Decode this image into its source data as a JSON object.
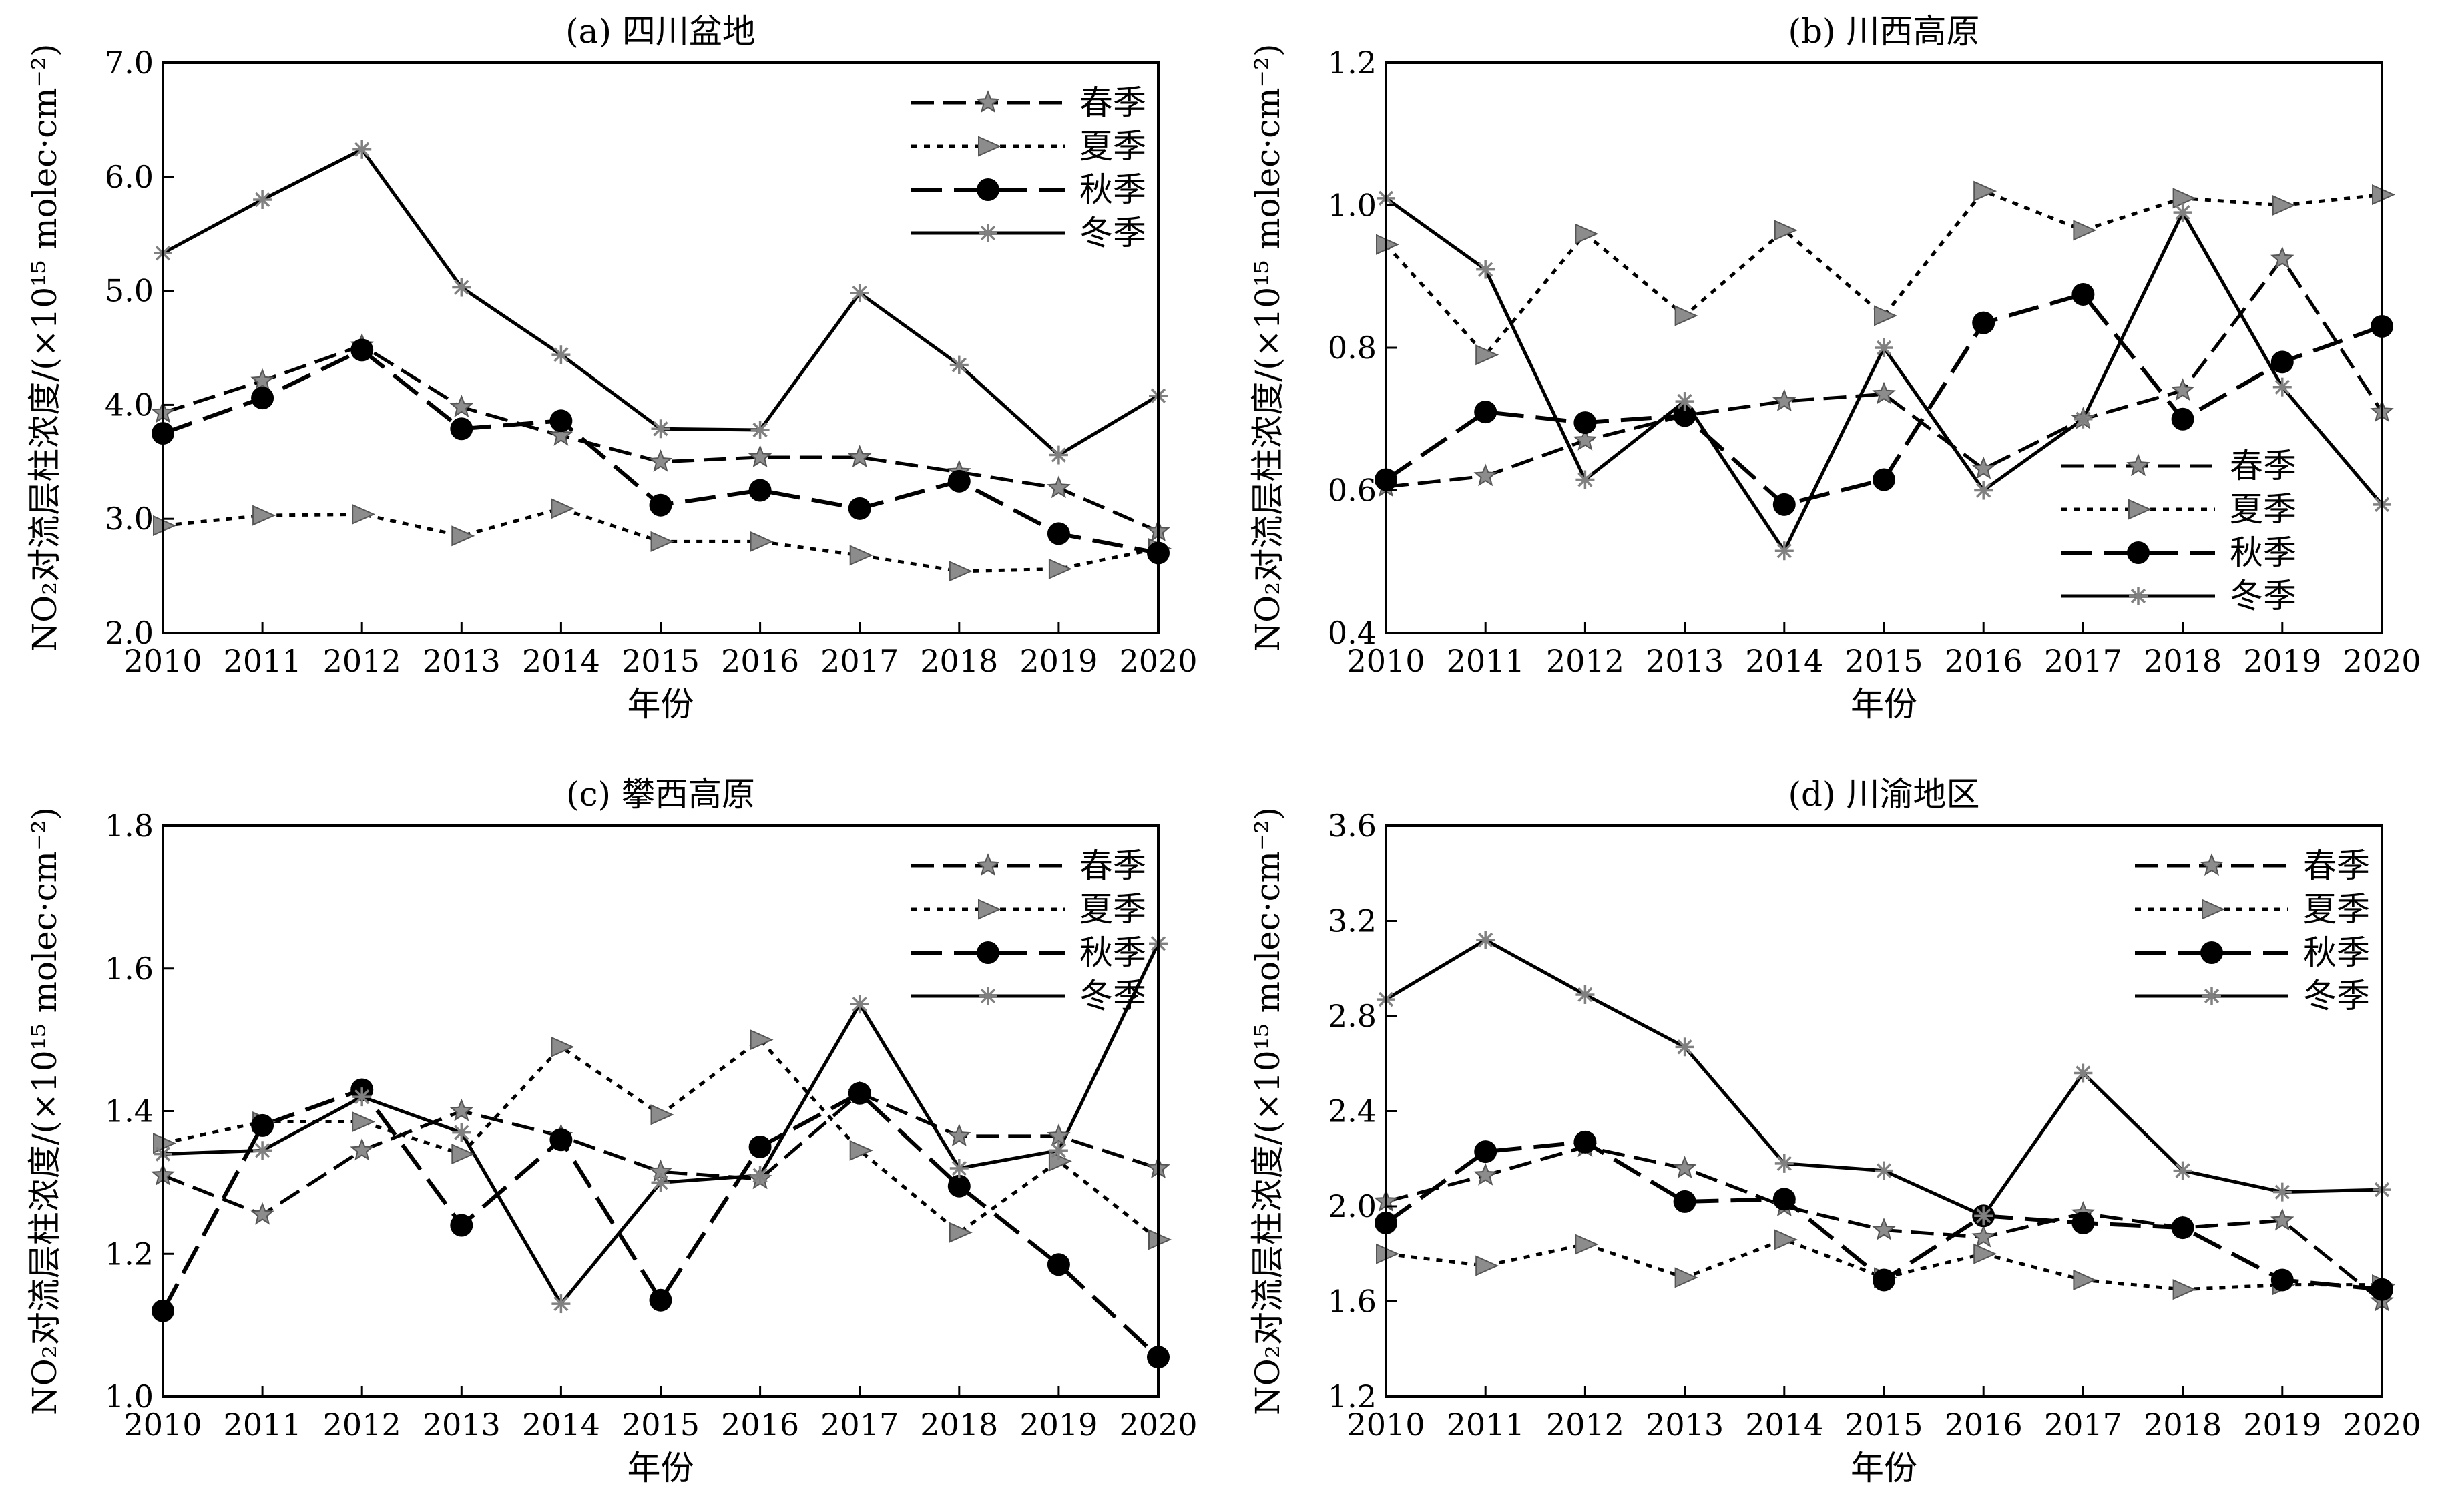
{
  "chart_data": [
    {
      "type": "line",
      "title": "(a) 四川盆地",
      "xlabel": "年份",
      "ylabel": "NO₂对流层柱浓度/(×10¹⁵ molec·cm⁻²)",
      "x": [
        2010,
        2011,
        2012,
        2013,
        2014,
        2015,
        2016,
        2017,
        2018,
        2019,
        2020
      ],
      "ylim": [
        2.0,
        7.0
      ],
      "yticks": [
        "2.0",
        "3.0",
        "4.0",
        "5.0",
        "6.0",
        "7.0"
      ],
      "legend_position": "top-right",
      "series": [
        {
          "name": "春季",
          "values": [
            3.93,
            4.21,
            4.52,
            3.98,
            3.73,
            3.5,
            3.54,
            3.54,
            3.41,
            3.27,
            2.89
          ]
        },
        {
          "name": "夏季",
          "values": [
            2.94,
            3.03,
            3.04,
            2.85,
            3.09,
            2.8,
            2.8,
            2.68,
            2.54,
            2.56,
            2.74
          ]
        },
        {
          "name": "秋季",
          "values": [
            3.75,
            4.06,
            4.48,
            3.79,
            3.86,
            3.12,
            3.25,
            3.09,
            3.33,
            2.87,
            2.7
          ]
        },
        {
          "name": "冬季",
          "values": [
            5.33,
            5.8,
            6.24,
            5.03,
            4.44,
            3.79,
            3.78,
            4.98,
            4.35,
            3.56,
            4.08
          ]
        }
      ]
    },
    {
      "type": "line",
      "title": "(b) 川西高原",
      "xlabel": "年份",
      "ylabel": "NO₂对流层柱浓度/(×10¹⁵ molec·cm⁻²)",
      "x": [
        2010,
        2011,
        2012,
        2013,
        2014,
        2015,
        2016,
        2017,
        2018,
        2019,
        2020
      ],
      "ylim": [
        0.4,
        1.2
      ],
      "yticks": [
        "0.4",
        "0.6",
        "0.8",
        "1.0",
        "1.2"
      ],
      "legend_position": "bottom-right",
      "series": [
        {
          "name": "春季",
          "values": [
            0.605,
            0.62,
            0.67,
            0.705,
            0.725,
            0.735,
            0.63,
            0.7,
            0.74,
            0.925,
            0.71
          ]
        },
        {
          "name": "夏季",
          "values": [
            0.945,
            0.79,
            0.96,
            0.845,
            0.965,
            0.845,
            1.02,
            0.965,
            1.01,
            1.0,
            1.015
          ]
        },
        {
          "name": "秋季",
          "values": [
            0.615,
            0.71,
            0.695,
            0.705,
            0.58,
            0.615,
            0.835,
            0.875,
            0.7,
            0.78,
            0.83
          ]
        },
        {
          "name": "冬季",
          "values": [
            1.01,
            0.91,
            0.615,
            0.725,
            0.515,
            0.8,
            0.6,
            0.7,
            0.99,
            0.745,
            0.58
          ]
        }
      ]
    },
    {
      "type": "line",
      "title": "(c) 攀西高原",
      "xlabel": "年份",
      "ylabel": "NO₂对流层柱浓度/(×10¹⁵ molec·cm⁻²)",
      "x": [
        2010,
        2011,
        2012,
        2013,
        2014,
        2015,
        2016,
        2017,
        2018,
        2019,
        2020
      ],
      "ylim": [
        1.0,
        1.8
      ],
      "yticks": [
        "1.0",
        "1.2",
        "1.4",
        "1.6",
        "1.8"
      ],
      "legend_position": "top-right",
      "series": [
        {
          "name": "春季",
          "values": [
            1.31,
            1.255,
            1.345,
            1.4,
            1.365,
            1.315,
            1.305,
            1.425,
            1.365,
            1.365,
            1.32
          ]
        },
        {
          "name": "夏季",
          "values": [
            1.355,
            1.385,
            1.385,
            1.34,
            1.49,
            1.395,
            1.5,
            1.345,
            1.23,
            1.33,
            1.22
          ]
        },
        {
          "name": "秋季",
          "values": [
            1.12,
            1.38,
            1.43,
            1.24,
            1.36,
            1.135,
            1.35,
            1.425,
            1.295,
            1.185,
            1.055
          ]
        },
        {
          "name": "冬季",
          "values": [
            1.34,
            1.345,
            1.42,
            1.37,
            1.13,
            1.3,
            1.31,
            1.55,
            1.32,
            1.345,
            1.635
          ]
        }
      ]
    },
    {
      "type": "line",
      "title": "(d) 川渝地区",
      "xlabel": "年份",
      "ylabel": "NO₂对流层柱浓度/(×10¹⁵ molec·cm⁻²)",
      "x": [
        2010,
        2011,
        2012,
        2013,
        2014,
        2015,
        2016,
        2017,
        2018,
        2019,
        2020
      ],
      "ylim": [
        1.2,
        3.6
      ],
      "yticks": [
        "1.2",
        "1.6",
        "2.0",
        "2.4",
        "2.8",
        "3.2",
        "3.6"
      ],
      "legend_position": "top-right",
      "series": [
        {
          "name": "春季",
          "values": [
            2.02,
            2.13,
            2.25,
            2.16,
            2.0,
            1.9,
            1.87,
            1.97,
            1.91,
            1.94,
            1.6
          ]
        },
        {
          "name": "夏季",
          "values": [
            1.8,
            1.75,
            1.84,
            1.7,
            1.86,
            1.7,
            1.8,
            1.69,
            1.65,
            1.67,
            1.67
          ]
        },
        {
          "name": "秋季",
          "values": [
            1.93,
            2.23,
            2.27,
            2.02,
            2.03,
            1.69,
            1.96,
            1.93,
            1.91,
            1.69,
            1.65
          ]
        },
        {
          "name": "冬季",
          "values": [
            2.87,
            3.12,
            2.89,
            2.67,
            2.18,
            2.15,
            1.96,
            2.56,
            2.15,
            2.06,
            2.07
          ]
        }
      ]
    }
  ]
}
